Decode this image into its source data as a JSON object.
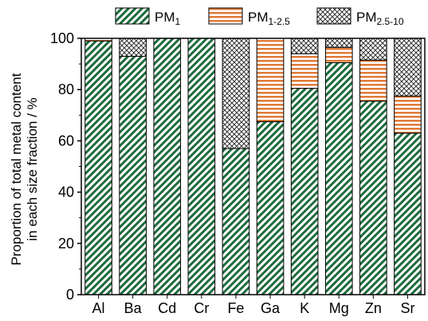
{
  "chart_data": {
    "type": "bar",
    "stacked": true,
    "categories": [
      "Al",
      "Ba",
      "Cd",
      "Cr",
      "Fe",
      "Ga",
      "K",
      "Mg",
      "Zn",
      "Sr"
    ],
    "series": [
      {
        "name": "PM",
        "name_sub": "1",
        "pattern": "diagonal-hatch",
        "color": "#1e6b3c",
        "values": [
          99,
          93,
          100,
          100,
          57,
          67.5,
          80.5,
          90.5,
          75.5,
          63
        ]
      },
      {
        "name": "PM",
        "name_sub": "1-2.5",
        "pattern": "horizontal-lines",
        "color": "#e07b39",
        "values": [
          1,
          0,
          0,
          0,
          0,
          32.5,
          13.5,
          6,
          16,
          14.5
        ]
      },
      {
        "name": "PM",
        "name_sub": "2.5-10",
        "pattern": "crosshatch",
        "color": "#333333",
        "values": [
          0,
          7,
          0,
          0,
          43,
          0,
          6,
          3.5,
          8.5,
          22.5
        ]
      }
    ],
    "ylabel_line1": "Proportion of total metal content",
    "ylabel_line2": "in each size fraction / %",
    "xlabel": "",
    "ylim": [
      0,
      100
    ],
    "yticks": [
      0,
      20,
      40,
      60,
      80,
      100
    ],
    "grid": false,
    "legend_position": "top"
  }
}
